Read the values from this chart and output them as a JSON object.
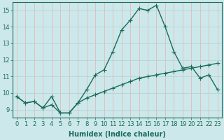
{
  "x": [
    0,
    1,
    2,
    3,
    4,
    5,
    6,
    7,
    8,
    9,
    10,
    11,
    12,
    13,
    14,
    15,
    16,
    17,
    18,
    19,
    20,
    21,
    22,
    23
  ],
  "line1": [
    9.8,
    9.4,
    9.5,
    9.1,
    9.8,
    8.8,
    8.8,
    9.4,
    10.2,
    11.1,
    11.4,
    12.5,
    13.8,
    14.4,
    15.1,
    15.0,
    15.3,
    14.0,
    12.5,
    11.5,
    11.6,
    10.9,
    11.1,
    10.2
  ],
  "line2": [
    9.8,
    9.4,
    9.5,
    9.1,
    9.3,
    8.8,
    8.8,
    9.4,
    9.7,
    9.9,
    10.1,
    10.3,
    10.5,
    10.7,
    10.9,
    11.0,
    11.1,
    11.2,
    11.3,
    11.4,
    11.5,
    11.6,
    11.7,
    11.8
  ],
  "line_color": "#1a6b5a",
  "bg_color": "#cce8ea",
  "grid_color": "#b0d0d4",
  "xlabel": "Humidex (Indice chaleur)",
  "xlim": [
    -0.5,
    23.5
  ],
  "ylim": [
    8.5,
    15.5
  ],
  "yticks": [
    9,
    10,
    11,
    12,
    13,
    14,
    15
  ],
  "xticks": [
    0,
    1,
    2,
    3,
    4,
    5,
    6,
    7,
    8,
    9,
    10,
    11,
    12,
    13,
    14,
    15,
    16,
    17,
    18,
    19,
    20,
    21,
    22,
    23
  ],
  "font_size": 6,
  "line_width": 1.0,
  "marker_size": 3
}
